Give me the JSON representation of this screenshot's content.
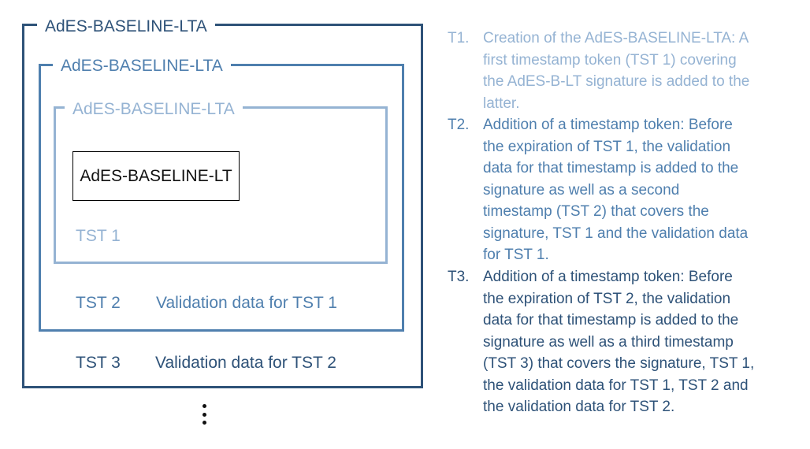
{
  "frames": {
    "outer_label": "AdES-BASELINE-LTA",
    "middle_label": "AdES-BASELINE-LTA",
    "inner_label": "AdES-BASELINE-LTA",
    "core_label": "AdES-BASELINE-LT"
  },
  "rows": {
    "tst1": "TST 1",
    "tst2": "TST 2",
    "validation_tst1": "Validation data for TST 1",
    "tst3": "TST 3",
    "validation_tst2": "Validation data for TST 2"
  },
  "steps": [
    {
      "num": "T1.",
      "lines": [
        "Creation of the AdES-BASELINE-LTA: A",
        "first timestamp token (TST 1) covering",
        "the AdES-B-LT signature is added to the",
        "latter."
      ]
    },
    {
      "num": "T2.",
      "lines": [
        "Addition of a timestamp token: Before",
        "the expiration of TST 1, the validation",
        "data for that timestamp is added to the",
        "signature as well as a second",
        "timestamp (TST 2) that covers the",
        "signature, TST 1 and the validation data",
        "for TST 1."
      ]
    },
    {
      "num": "T3.",
      "lines": [
        "Addition of a timestamp token: Before",
        "the expiration of TST 2, the validation",
        "data for that timestamp is added to the",
        "signature as well as a third timestamp",
        "(TST 3) that covers the signature, TST 1,",
        "the validation data for TST 1, TST 2 and",
        "the validation data for TST 2."
      ]
    }
  ],
  "colors": {
    "outer": "#2e5278",
    "middle": "#4f7fae",
    "inner": "#95b3d3",
    "core_border": "#000000"
  },
  "more_indicator_icon": "vertical-ellipsis-icon"
}
